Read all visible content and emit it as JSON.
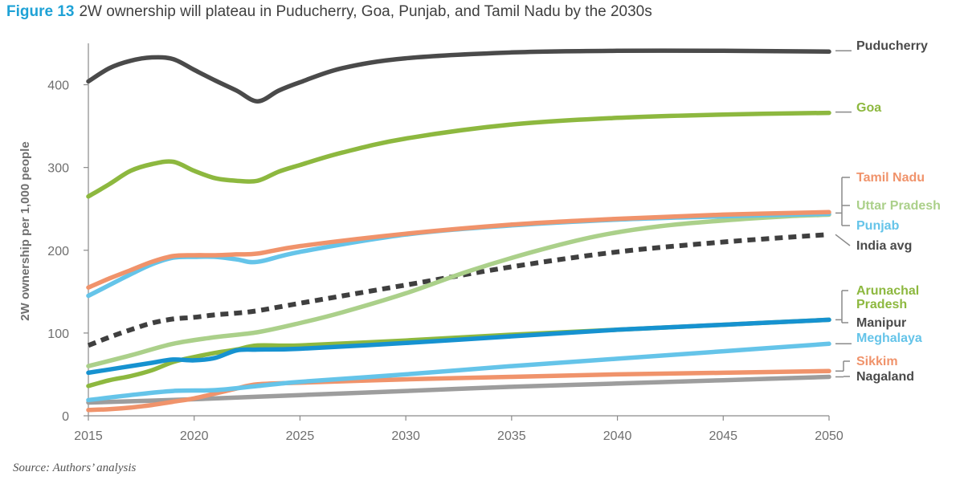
{
  "title": {
    "figure_label": "Figure 13",
    "text": "2W ownership will plateau in Puducherry, Goa, Punjab, and Tamil Nadu by the 2030s"
  },
  "source": "Source: Authors’ analysis",
  "chart_data": {
    "type": "line",
    "ylabel": "2W ownership per 1,000 people",
    "xlabel": "",
    "xlim": [
      2015,
      2050
    ],
    "ylim": [
      0,
      450
    ],
    "x_ticks": [
      2015,
      2020,
      2025,
      2030,
      2035,
      2040,
      2045,
      2050
    ],
    "y_ticks": [
      0,
      100,
      200,
      300,
      400
    ],
    "grid": false,
    "legend": "direct labels at right end of lines",
    "series": [
      {
        "name": "Nagaland",
        "color": "#9d9d9d",
        "style": "solid",
        "points": [
          [
            2015,
            16
          ],
          [
            2020,
            20
          ],
          [
            2025,
            25
          ],
          [
            2030,
            30
          ],
          [
            2035,
            35
          ],
          [
            2040,
            39
          ],
          [
            2045,
            43
          ],
          [
            2050,
            47
          ]
        ]
      },
      {
        "name": "Sikkim",
        "color": "#f0936b",
        "style": "solid",
        "points": [
          [
            2015,
            7
          ],
          [
            2016,
            8
          ],
          [
            2017,
            10
          ],
          [
            2018,
            13
          ],
          [
            2019,
            17
          ],
          [
            2020,
            21
          ],
          [
            2021,
            27
          ],
          [
            2022,
            33
          ],
          [
            2023,
            38
          ],
          [
            2025,
            40
          ],
          [
            2030,
            44
          ],
          [
            2035,
            47
          ],
          [
            2040,
            50
          ],
          [
            2045,
            52
          ],
          [
            2050,
            54
          ]
        ]
      },
      {
        "name": "Meghalaya",
        "color": "#65c4e9",
        "style": "solid",
        "points": [
          [
            2015,
            19
          ],
          [
            2017,
            25
          ],
          [
            2019,
            30
          ],
          [
            2021,
            31
          ],
          [
            2023,
            36
          ],
          [
            2025,
            41
          ],
          [
            2030,
            50
          ],
          [
            2035,
            60
          ],
          [
            2040,
            69
          ],
          [
            2045,
            78
          ],
          [
            2050,
            87
          ]
        ]
      },
      {
        "name": "Arunachal Pradesh",
        "color": "#8db83f",
        "style": "solid",
        "points": [
          [
            2015,
            36
          ],
          [
            2016,
            43
          ],
          [
            2017,
            48
          ],
          [
            2018,
            55
          ],
          [
            2019,
            65
          ],
          [
            2020,
            71
          ],
          [
            2021,
            76
          ],
          [
            2022,
            80
          ],
          [
            2023,
            85
          ],
          [
            2025,
            85
          ],
          [
            2030,
            91
          ],
          [
            2035,
            98
          ],
          [
            2040,
            104
          ],
          [
            2045,
            110
          ],
          [
            2050,
            116
          ]
        ]
      },
      {
        "name": "Manipur",
        "color": "#1692d0",
        "style": "solid",
        "points": [
          [
            2015,
            52
          ],
          [
            2016,
            56
          ],
          [
            2017,
            60
          ],
          [
            2018,
            64
          ],
          [
            2019,
            68
          ],
          [
            2020,
            67
          ],
          [
            2021,
            70
          ],
          [
            2022,
            79
          ],
          [
            2023,
            80
          ],
          [
            2025,
            81
          ],
          [
            2030,
            88
          ],
          [
            2035,
            96
          ],
          [
            2040,
            104
          ],
          [
            2045,
            110
          ],
          [
            2050,
            116
          ]
        ]
      },
      {
        "name": "India avg",
        "color": "#3f3f3f",
        "style": "dashed",
        "points": [
          [
            2015,
            85
          ],
          [
            2016,
            95
          ],
          [
            2017,
            104
          ],
          [
            2018,
            112
          ],
          [
            2019,
            117
          ],
          [
            2020,
            119
          ],
          [
            2021,
            122
          ],
          [
            2022,
            124
          ],
          [
            2023,
            127
          ],
          [
            2025,
            136
          ],
          [
            2030,
            158
          ],
          [
            2035,
            180
          ],
          [
            2040,
            198
          ],
          [
            2045,
            210
          ],
          [
            2050,
            219
          ]
        ]
      },
      {
        "name": "Uttar Pradesh",
        "color": "#abd08a",
        "style": "solid",
        "points": [
          [
            2015,
            60
          ],
          [
            2017,
            73
          ],
          [
            2019,
            87
          ],
          [
            2021,
            95
          ],
          [
            2023,
            101
          ],
          [
            2025,
            112
          ],
          [
            2027,
            125
          ],
          [
            2030,
            148
          ],
          [
            2033,
            175
          ],
          [
            2036,
            198
          ],
          [
            2039,
            217
          ],
          [
            2042,
            229
          ],
          [
            2045,
            236
          ],
          [
            2048,
            241
          ],
          [
            2050,
            243
          ]
        ]
      },
      {
        "name": "Punjab",
        "color": "#65c4e9",
        "style": "solid",
        "points": [
          [
            2015,
            145
          ],
          [
            2016,
            158
          ],
          [
            2017,
            171
          ],
          [
            2018,
            183
          ],
          [
            2019,
            191
          ],
          [
            2020,
            192
          ],
          [
            2021,
            192
          ],
          [
            2022,
            189
          ],
          [
            2023,
            186
          ],
          [
            2025,
            198
          ],
          [
            2030,
            219
          ],
          [
            2035,
            230
          ],
          [
            2040,
            237
          ],
          [
            2045,
            241
          ],
          [
            2050,
            244
          ]
        ]
      },
      {
        "name": "Tamil Nadu",
        "color": "#f0936b",
        "style": "solid",
        "points": [
          [
            2015,
            155
          ],
          [
            2016,
            166
          ],
          [
            2017,
            176
          ],
          [
            2018,
            186
          ],
          [
            2019,
            193
          ],
          [
            2020,
            194
          ],
          [
            2021,
            194
          ],
          [
            2022,
            195
          ],
          [
            2023,
            196
          ],
          [
            2025,
            205
          ],
          [
            2030,
            220
          ],
          [
            2035,
            231
          ],
          [
            2040,
            238
          ],
          [
            2045,
            243
          ],
          [
            2050,
            246
          ]
        ]
      },
      {
        "name": "Goa",
        "color": "#8db83f",
        "style": "solid",
        "points": [
          [
            2015,
            265
          ],
          [
            2016,
            280
          ],
          [
            2017,
            296
          ],
          [
            2018,
            304
          ],
          [
            2019,
            307
          ],
          [
            2020,
            296
          ],
          [
            2021,
            287
          ],
          [
            2022,
            284
          ],
          [
            2023,
            284
          ],
          [
            2024,
            295
          ],
          [
            2025,
            303
          ],
          [
            2027,
            318
          ],
          [
            2030,
            335
          ],
          [
            2035,
            352
          ],
          [
            2040,
            360
          ],
          [
            2045,
            364
          ],
          [
            2050,
            366
          ]
        ]
      },
      {
        "name": "Puducherry",
        "color": "#4a4a4a",
        "style": "solid",
        "points": [
          [
            2015,
            404
          ],
          [
            2016,
            420
          ],
          [
            2017,
            429
          ],
          [
            2018,
            433
          ],
          [
            2019,
            431
          ],
          [
            2020,
            418
          ],
          [
            2021,
            405
          ],
          [
            2022,
            393
          ],
          [
            2023,
            380
          ],
          [
            2024,
            393
          ],
          [
            2025,
            403
          ],
          [
            2027,
            420
          ],
          [
            2030,
            432
          ],
          [
            2035,
            439
          ],
          [
            2040,
            441
          ],
          [
            2045,
            441
          ],
          [
            2050,
            440
          ]
        ]
      }
    ],
    "labels": [
      {
        "text": "Puducherry",
        "color": "#4a4a4a"
      },
      {
        "text": "Goa",
        "color": "#8db83f"
      },
      {
        "text": "Tamil Nadu",
        "color": "#f0936b"
      },
      {
        "text": "Uttar Pradesh",
        "color": "#abd08a"
      },
      {
        "text": "Punjab",
        "color": "#65c4e9"
      },
      {
        "text": "India avg",
        "color": "#4a4a4a"
      },
      {
        "text": "Arunachal",
        "color": "#8db83f"
      },
      {
        "text": "Pradesh",
        "color": "#8db83f"
      },
      {
        "text": "Manipur",
        "color": "#4a4a4a"
      },
      {
        "text": "Meghalaya",
        "color": "#65c4e9"
      },
      {
        "text": "Sikkim",
        "color": "#f0936b"
      },
      {
        "text": "Nagaland",
        "color": "#4a4a4a"
      }
    ]
  }
}
